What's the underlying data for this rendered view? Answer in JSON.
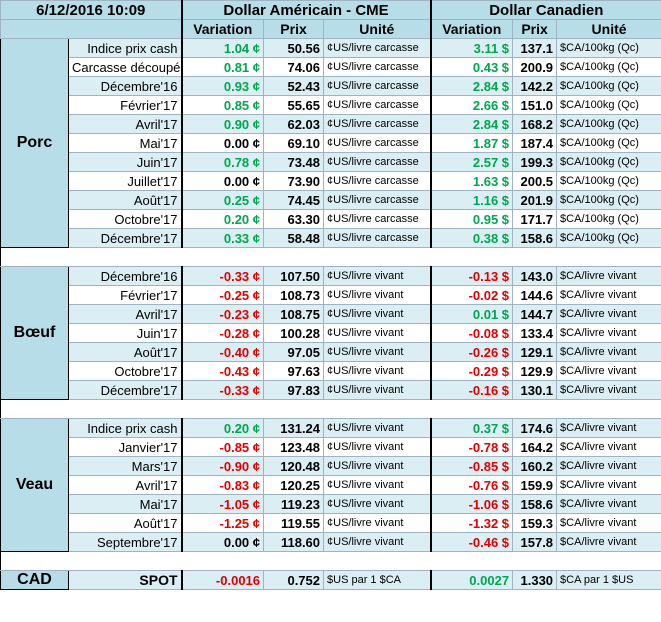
{
  "header": {
    "date": "6/12/2016 10:09",
    "us_title": "Dollar Américain - CME",
    "ca_title": "Dollar Canadien",
    "columns": [
      "Variation",
      "Prix",
      "Unité",
      "Variation",
      "Prix",
      "Unité"
    ]
  },
  "sections": [
    {
      "name": "Porc",
      "rows": [
        [
          "Indice prix cash",
          "1.04 ¢",
          "50.56",
          "¢US/livre carcasse",
          "3.11 $",
          "137.1",
          "$CA/100kg (Qc)"
        ],
        [
          "Carcasse découpée",
          "0.81 ¢",
          "74.06",
          "¢US/livre carcasse",
          "0.43 $",
          "200.9",
          "$CA/100kg (Qc)"
        ],
        [
          "Décembre'16",
          "0.93 ¢",
          "52.43",
          "¢US/livre carcasse",
          "2.84 $",
          "142.2",
          "$CA/100kg (Qc)"
        ],
        [
          "Février'17",
          "0.85 ¢",
          "55.65",
          "¢US/livre carcasse",
          "2.66 $",
          "151.0",
          "$CA/100kg (Qc)"
        ],
        [
          "Avril'17",
          "0.90 ¢",
          "62.03",
          "¢US/livre carcasse",
          "2.84 $",
          "168.2",
          "$CA/100kg (Qc)"
        ],
        [
          "Mai'17",
          "0.00 ¢",
          "69.10",
          "¢US/livre carcasse",
          "1.87 $",
          "187.4",
          "$CA/100kg (Qc)"
        ],
        [
          "Juin'17",
          "0.78 ¢",
          "73.48",
          "¢US/livre carcasse",
          "2.57 $",
          "199.3",
          "$CA/100kg (Qc)"
        ],
        [
          "Juillet'17",
          "0.00 ¢",
          "73.90",
          "¢US/livre carcasse",
          "1.63 $",
          "200.5",
          "$CA/100kg (Qc)"
        ],
        [
          "Août'17",
          "0.25 ¢",
          "74.45",
          "¢US/livre carcasse",
          "1.16 $",
          "201.9",
          "$CA/100kg (Qc)"
        ],
        [
          "Octobre'17",
          "0.20 ¢",
          "63.30",
          "¢US/livre carcasse",
          "0.95 $",
          "171.7",
          "$CA/100kg (Qc)"
        ],
        [
          "Décembre'17",
          "0.33 ¢",
          "58.48",
          "¢US/livre carcasse",
          "0.38 $",
          "158.6",
          "$CA/100kg (Qc)"
        ]
      ]
    },
    {
      "name": "Bœuf",
      "rows": [
        [
          "Décembre'16",
          "-0.33 ¢",
          "107.50",
          "¢US/livre vivant",
          "-0.13 $",
          "143.0",
          "$CA/livre vivant"
        ],
        [
          "Février'17",
          "-0.25 ¢",
          "108.73",
          "¢US/livre vivant",
          "-0.02 $",
          "144.6",
          "$CA/livre vivant"
        ],
        [
          "Avril'17",
          "-0.23 ¢",
          "108.75",
          "¢US/livre vivant",
          "0.01 $",
          "144.7",
          "$CA/livre vivant"
        ],
        [
          "Juin'17",
          "-0.28 ¢",
          "100.28",
          "¢US/livre vivant",
          "-0.08 $",
          "133.4",
          "$CA/livre vivant"
        ],
        [
          "Août'17",
          "-0.40 ¢",
          "97.05",
          "¢US/livre vivant",
          "-0.26 $",
          "129.1",
          "$CA/livre vivant"
        ],
        [
          "Octobre'17",
          "-0.43 ¢",
          "97.63",
          "¢US/livre vivant",
          "-0.29 $",
          "129.9",
          "$CA/livre vivant"
        ],
        [
          "Décembre'17",
          "-0.33 ¢",
          "97.83",
          "¢US/livre vivant",
          "-0.16 $",
          "130.1",
          "$CA/livre vivant"
        ]
      ]
    },
    {
      "name": "Veau",
      "rows": [
        [
          "Indice prix cash",
          "0.20 ¢",
          "131.24",
          "¢US/livre vivant",
          "0.37 $",
          "174.6",
          "$CA/livre vivant"
        ],
        [
          "Janvier'17",
          "-0.85 ¢",
          "123.48",
          "¢US/livre vivant",
          "-0.78 $",
          "164.2",
          "$CA/livre vivant"
        ],
        [
          "Mars'17",
          "-0.90 ¢",
          "120.48",
          "¢US/livre vivant",
          "-0.85 $",
          "160.2",
          "$CA/livre vivant"
        ],
        [
          "Avril'17",
          "-0.83 ¢",
          "120.25",
          "¢US/livre vivant",
          "-0.76 $",
          "159.9",
          "$CA/livre vivant"
        ],
        [
          "Mai'17",
          "-1.05 ¢",
          "119.23",
          "¢US/livre vivant",
          "-1.06 $",
          "158.6",
          "$CA/livre vivant"
        ],
        [
          "Août'17",
          "-1.25 ¢",
          "119.55",
          "¢US/livre vivant",
          "-1.32 $",
          "159.3",
          "$CA/livre vivant"
        ],
        [
          "Septembre'17",
          "0.00 ¢",
          "118.60",
          "¢US/livre vivant",
          "-0.46 $",
          "157.8",
          "$CA/livre vivant"
        ]
      ]
    },
    {
      "name": "CAD",
      "rows": [
        [
          "SPOT",
          "-0.0016",
          "0.752",
          "$US par 1 $CA",
          "0.0027",
          "1.330",
          "$CA par 1 $US"
        ]
      ]
    }
  ]
}
